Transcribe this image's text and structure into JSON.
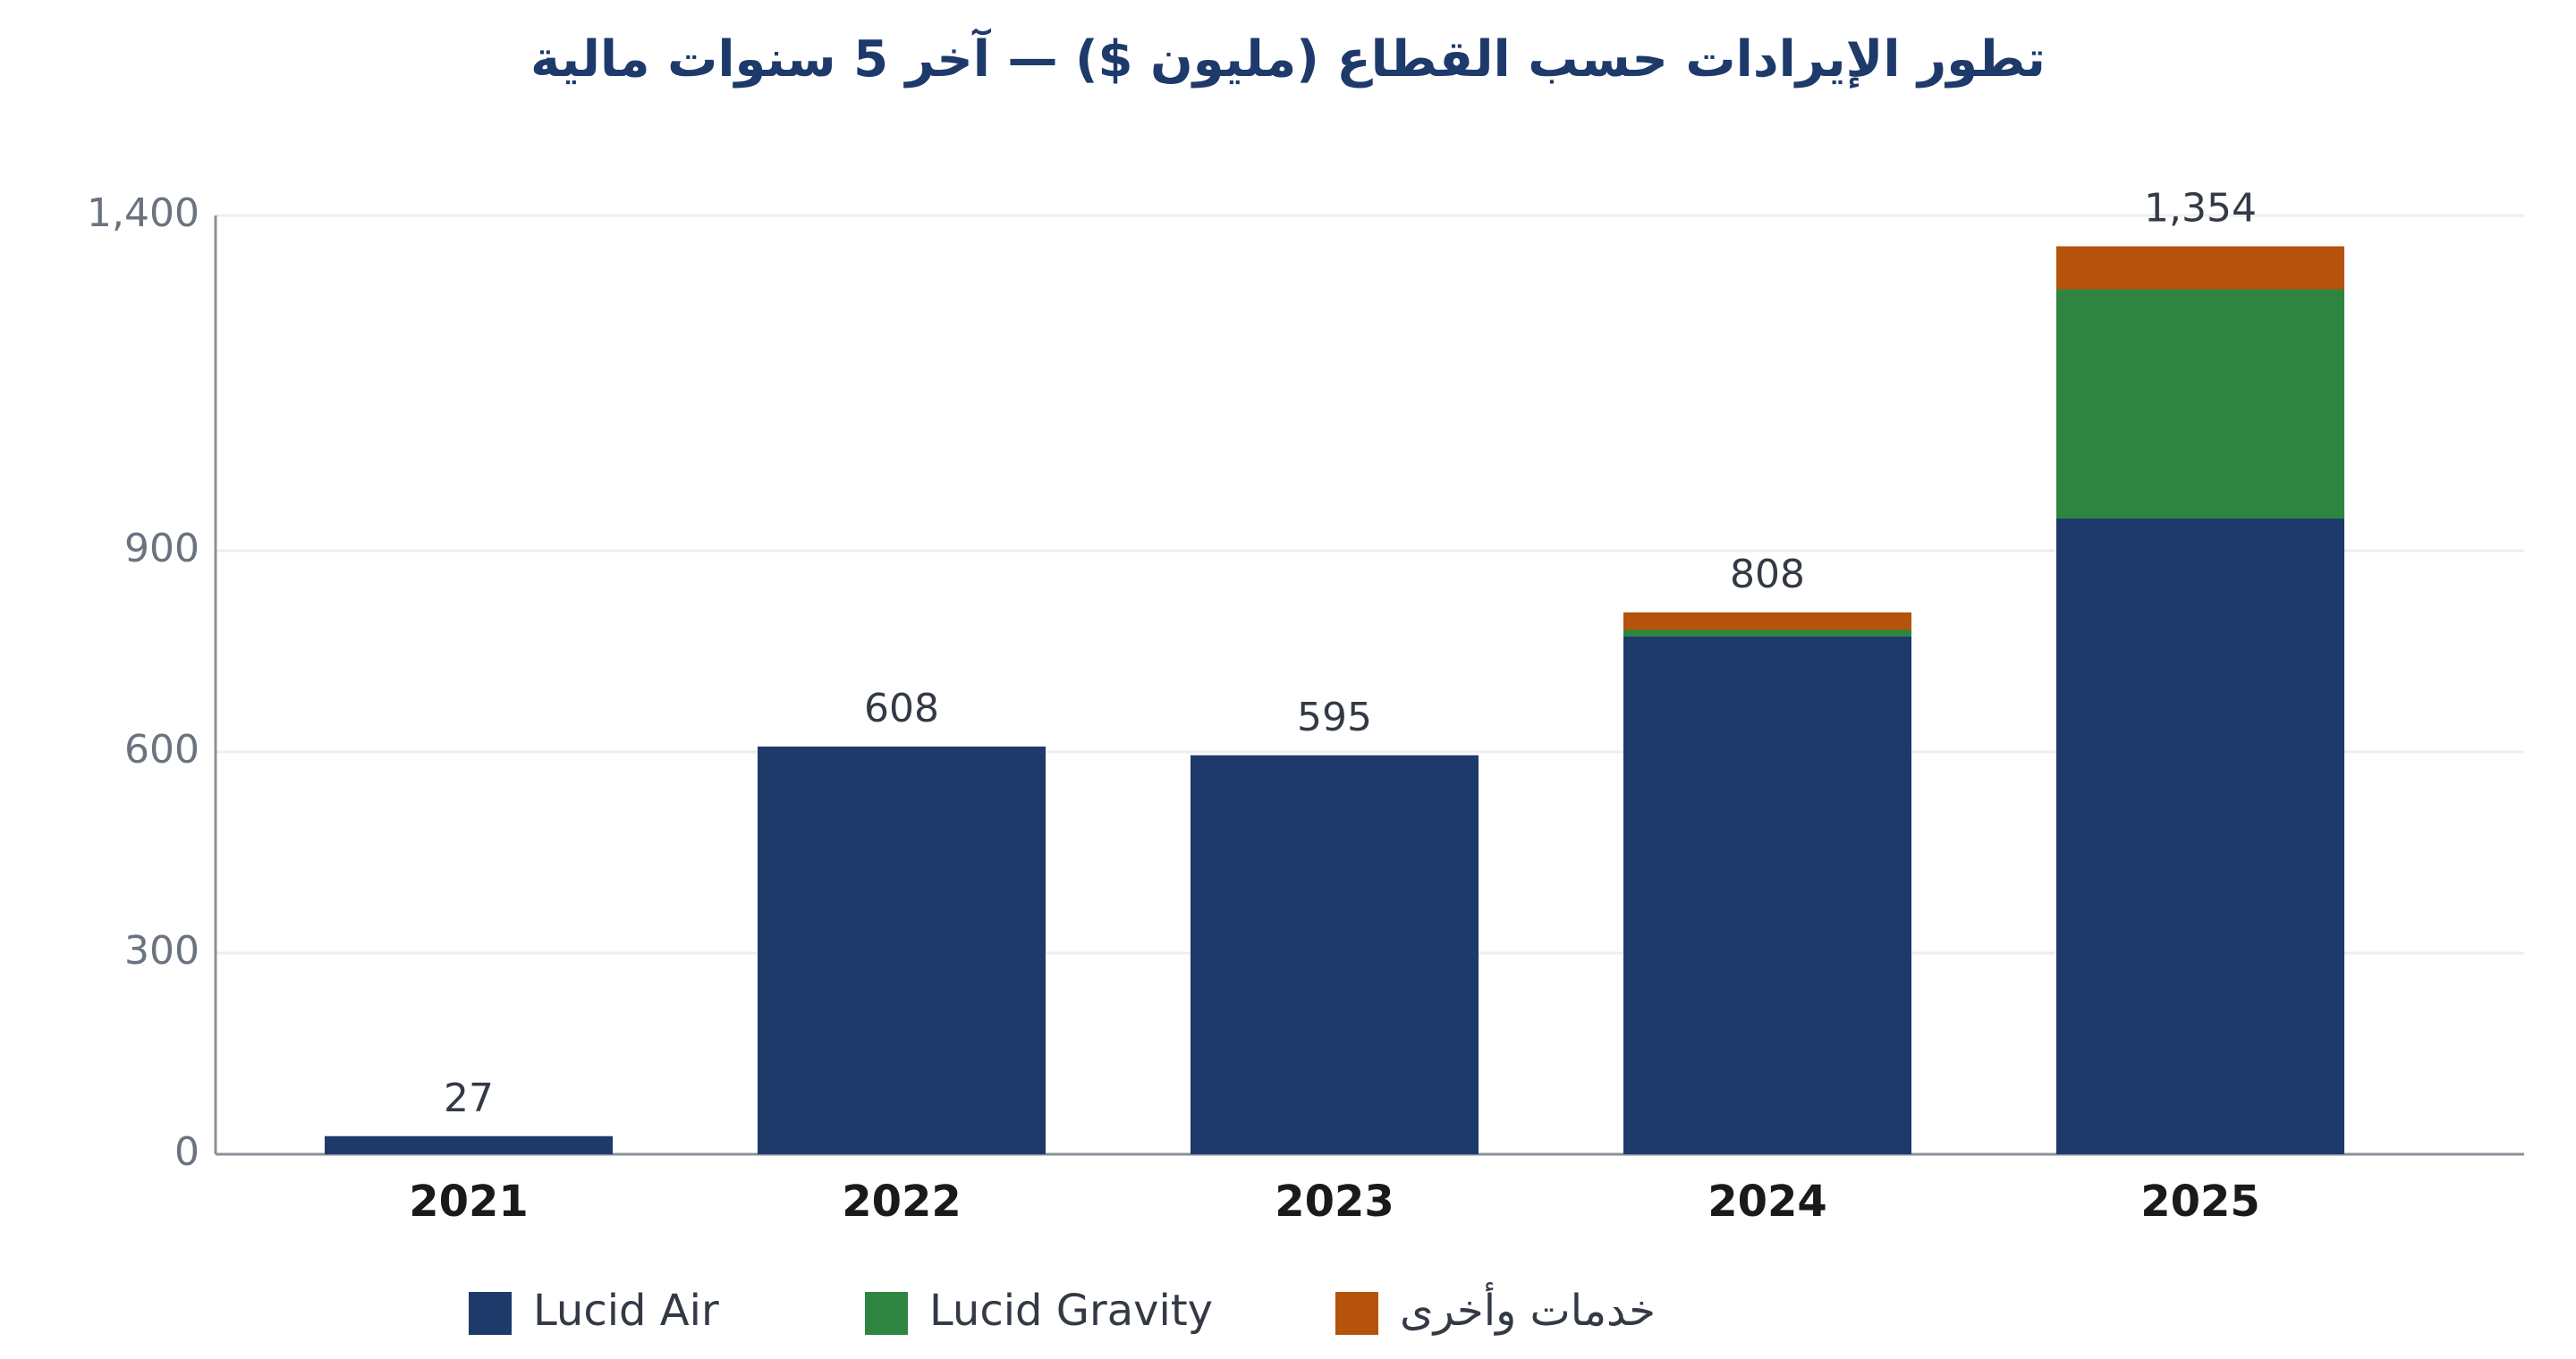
{
  "chart_data": {
    "type": "stacked-bar",
    "title": "تطور الإيرادات حسب القطاع (مليون $) — آخر 5 سنوات مالية",
    "categories": [
      "2021",
      "2022",
      "2023",
      "2024",
      "2025"
    ],
    "series": [
      {
        "name": "Lucid Air",
        "color": "#1e3a6b",
        "values": [
          27,
          608,
          595,
          772,
          948
        ]
      },
      {
        "name": "Lucid Gravity",
        "color": "#2e8540",
        "values": [
          0,
          0,
          0,
          10,
          342
        ]
      },
      {
        "name": "خدمات وأخرى",
        "color": "#b5520b",
        "values": [
          0,
          0,
          0,
          26,
          64
        ]
      }
    ],
    "totals": [
      27,
      608,
      595,
      808,
      1354
    ],
    "total_labels": [
      "27",
      "608",
      "595",
      "808",
      "1,354"
    ],
    "ylim": [
      0,
      1400
    ],
    "yticks": [
      0,
      300,
      600,
      900,
      {
        "value": 1400,
        "label": "1,400"
      }
    ],
    "grid": true
  }
}
